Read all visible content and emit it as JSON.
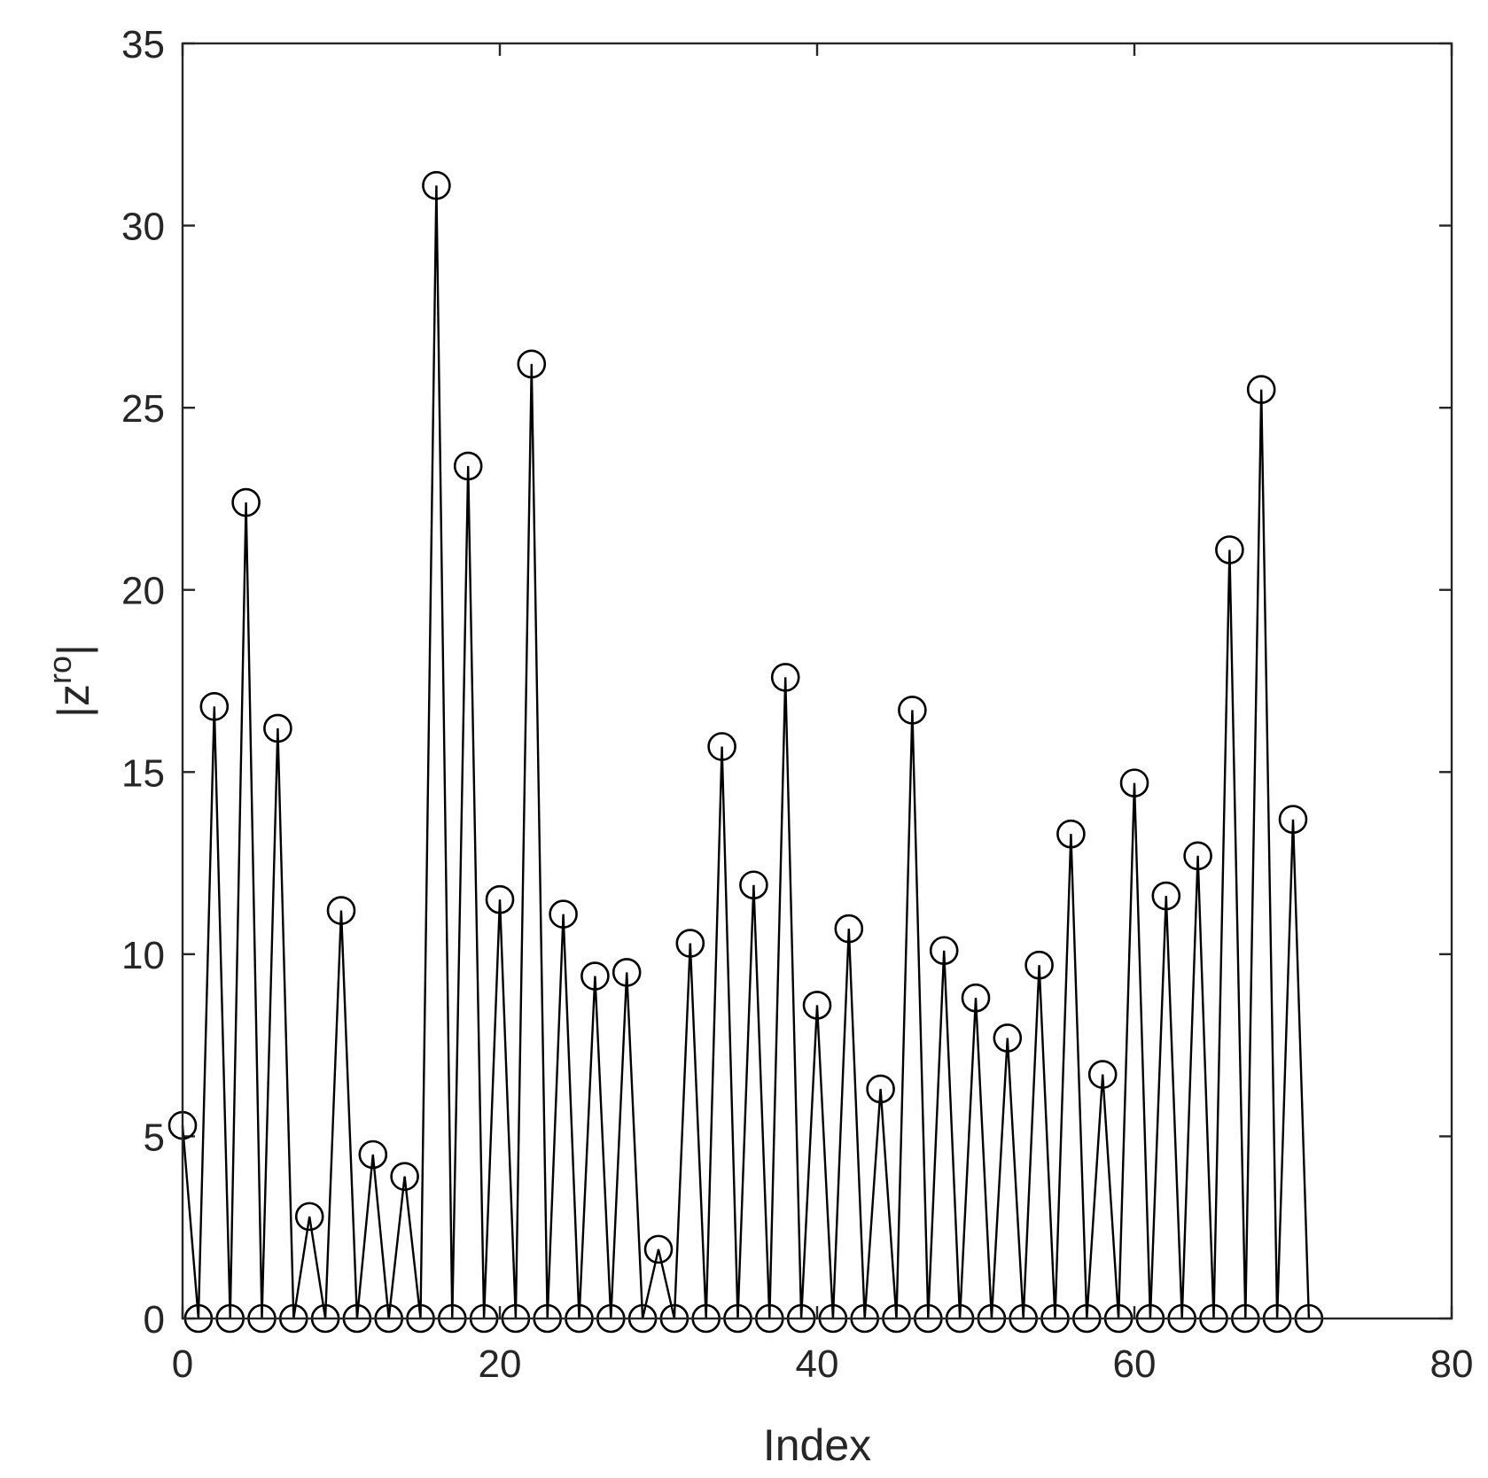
{
  "chart_data": {
    "type": "line",
    "title": "",
    "xlabel": "Index",
    "ylabel": "|z",
    "ylabel_superscript": "ro",
    "ylabel_suffix": "|",
    "xlim": [
      0,
      80
    ],
    "ylim": [
      0,
      35
    ],
    "xticks": [
      0,
      20,
      40,
      60,
      80
    ],
    "yticks": [
      0,
      5,
      10,
      15,
      20,
      25,
      30,
      35
    ],
    "grid": false,
    "box": true,
    "marker": "open-circle",
    "line_color": "#000000",
    "series": [
      {
        "x": [
          0,
          1,
          2,
          3,
          4,
          5,
          6,
          7,
          8,
          9,
          10,
          11,
          12,
          13,
          14,
          15,
          16,
          17,
          18,
          19,
          20,
          21,
          22,
          23,
          24,
          25,
          26,
          27,
          28,
          29,
          30,
          31,
          32,
          33,
          34,
          35,
          36,
          37,
          38,
          39,
          40,
          41,
          42,
          43,
          44,
          45,
          46,
          47,
          48,
          49,
          50,
          51,
          52,
          53,
          54,
          55,
          56,
          57,
          58,
          59,
          60,
          61,
          62,
          63,
          64,
          65,
          66,
          67,
          68,
          69,
          70,
          71
        ],
        "y": [
          5.3,
          0,
          16.8,
          0,
          22.4,
          0,
          16.2,
          0,
          2.8,
          0,
          11.2,
          0,
          4.5,
          0,
          3.9,
          0,
          31.1,
          0,
          23.4,
          0,
          11.5,
          0,
          26.2,
          0,
          11.1,
          0,
          9.4,
          0,
          9.5,
          0,
          1.9,
          0,
          10.3,
          0,
          15.7,
          0,
          11.9,
          0,
          17.6,
          0,
          8.6,
          0,
          10.7,
          0,
          6.3,
          0,
          16.7,
          0,
          10.1,
          0,
          8.8,
          0,
          7.7,
          0,
          9.7,
          0,
          13.3,
          0,
          6.7,
          0,
          14.7,
          0,
          11.6,
          0,
          12.7,
          0,
          21.1,
          0,
          25.5,
          0,
          13.7,
          0
        ]
      }
    ]
  }
}
